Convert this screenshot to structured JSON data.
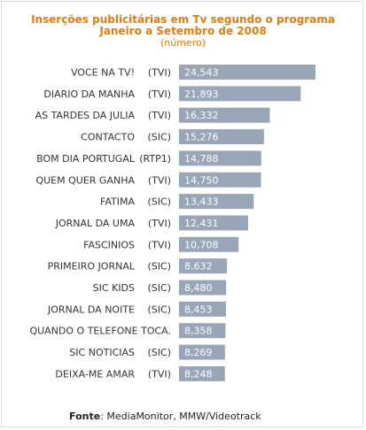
{
  "chart_data": {
    "type": "bar",
    "orientation": "horizontal",
    "title": "Inserções publicitárias em Tv segundo o programa",
    "title_line2": "Janeiro a Setembro de 2008",
    "subtitle": "(número)",
    "categories": [
      {
        "name": "VOCE NA TV!",
        "network": "(TVI)"
      },
      {
        "name": "DIARIO DA MANHA",
        "network": "(TVI)"
      },
      {
        "name": "AS TARDES DA JULIA",
        "network": "(TVI)"
      },
      {
        "name": "CONTACTO",
        "network": "(SIC)"
      },
      {
        "name": "BOM DIA PORTUGAL",
        "network": "(RTP1)"
      },
      {
        "name": "QUEM QUER GANHA",
        "network": "(TVI)"
      },
      {
        "name": "FATIMA",
        "network": "(SIC)"
      },
      {
        "name": "JORNAL DA UMA",
        "network": "(TVI)"
      },
      {
        "name": "FASCINIOS",
        "network": "(TVI)"
      },
      {
        "name": "PRIMEIRO JORNAL",
        "network": "(SIC)"
      },
      {
        "name": "SIC KIDS",
        "network": "(SIC)"
      },
      {
        "name": "JORNAL DA NOITE",
        "network": "(SIC)"
      },
      {
        "name": "QUANDO O TELEFONE TOCA.",
        "network": ""
      },
      {
        "name": "SIC NOTICIAS",
        "network": "(SIC)"
      },
      {
        "name": "DEIXA-ME AMAR",
        "network": "(TVI)"
      }
    ],
    "values": [
      24543,
      21893,
      16332,
      15276,
      14788,
      14750,
      13433,
      12431,
      10708,
      8632,
      8480,
      8453,
      8358,
      8269,
      8248
    ],
    "value_labels": [
      "24,543",
      "21,893",
      "16,332",
      "15,276",
      "14,788",
      "14,750",
      "13,433",
      "12,431",
      "10,708",
      "8,632",
      "8,480",
      "8,453",
      "8,358",
      "8,269",
      "8,248"
    ],
    "bar_color": "#98a6b8",
    "grid": false,
    "legend": "none"
  },
  "source": {
    "label": "Fonte",
    "separator": ":",
    "text": "MediaMonitor, MMW/Videotrack"
  },
  "colors": {
    "title": "#e07d10",
    "bar": "#98a6b8",
    "bar_text": "#ffffff"
  }
}
